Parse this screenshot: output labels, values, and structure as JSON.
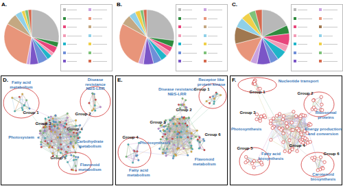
{
  "chart_data": [
    {
      "type": "pie",
      "title": "A.",
      "values": [
        28,
        3,
        4,
        2,
        3,
        6,
        5,
        2,
        30,
        7,
        4,
        2,
        2,
        2
      ],
      "colors": [
        "#b8b8b8",
        "#2e8b3e",
        "#e8467c",
        "#f29ab5",
        "#1fb5c9",
        "#6f8fd8",
        "#7b55c7",
        "#c9a2e0",
        "#e8957a",
        "#c4a882",
        "#8fd0e8",
        "#f0d04a",
        "#7ec27a",
        "#d66a4f"
      ]
    },
    {
      "type": "pie",
      "title": "B.",
      "values": [
        27,
        4,
        3,
        3,
        4,
        5,
        6,
        3,
        28,
        6,
        4,
        3,
        2,
        2
      ],
      "colors": [
        "#b8b8b8",
        "#2e8b3e",
        "#e8467c",
        "#f29ab5",
        "#1fb5c9",
        "#6f8fd8",
        "#7b55c7",
        "#c9a2e0",
        "#e8957a",
        "#c4a882",
        "#8fd0e8",
        "#f0d04a",
        "#7ec27a",
        "#d66a4f"
      ]
    },
    {
      "type": "pie",
      "title": "C.",
      "values": [
        18,
        5,
        7,
        4,
        6,
        5,
        8,
        4,
        14,
        10,
        6,
        5,
        4,
        4
      ],
      "colors": [
        "#b8b8b8",
        "#2e8b3e",
        "#e8467c",
        "#f29ab5",
        "#1fb5c9",
        "#6f8fd8",
        "#7b55c7",
        "#c9a2e0",
        "#e8957a",
        "#a07850",
        "#8fd0e8",
        "#f0d04a",
        "#7ec27a",
        "#d66a4f"
      ]
    }
  ],
  "diagram": {
    "panels": [
      {
        "label": "D.",
        "groups": [
          {
            "name": "Group 1",
            "function": [
              "Fatty acid",
              "metabolism"
            ]
          },
          {
            "name": "Group 2",
            "function": [
              "Disease",
              "resistance",
              "NBS-LRR"
            ]
          },
          {
            "name": "Group 3",
            "function": [
              "Photosystem"
            ]
          },
          {
            "name": "Group 4",
            "function": [
              "Carbohydrate",
              "metabolism"
            ]
          },
          {
            "name": "Group 5",
            "function": [
              "Flavonoid",
              "metabolism"
            ]
          }
        ]
      },
      {
        "label": "E.",
        "groups": [
          {
            "name": "Group 1",
            "function": [
              "Receptor like",
              "protein kinase"
            ]
          },
          {
            "name": "Group 2",
            "function": [
              "Disease resistance",
              "NBS-LRR"
            ]
          },
          {
            "name": "Group 3",
            "function": [
              "Photosynthesis"
            ]
          },
          {
            "name": "Group 4",
            "function": [
              "Fatty acid",
              "metabolism"
            ]
          },
          {
            "name": "Group 6",
            "function": [
              "Flavonoid",
              "metabolism"
            ]
          }
        ]
      },
      {
        "label": "F.",
        "groups": [
          {
            "name": "Group 1",
            "function": [
              "Nucleotide transport"
            ]
          },
          {
            "name": "Group 2",
            "function": [
              "Ribosomal",
              "proteins"
            ]
          },
          {
            "name": "Group 3",
            "function": [
              "Photosynthesis"
            ]
          },
          {
            "name": "Group 4",
            "function": [
              "Energy production",
              "and conversion"
            ]
          },
          {
            "name": "Group 5",
            "function": [
              "Fatty acid",
              "biosynthesis"
            ]
          },
          {
            "name": "Group 6",
            "function": [
              "Carotenoid",
              "biosynthesis"
            ]
          }
        ]
      }
    ]
  }
}
